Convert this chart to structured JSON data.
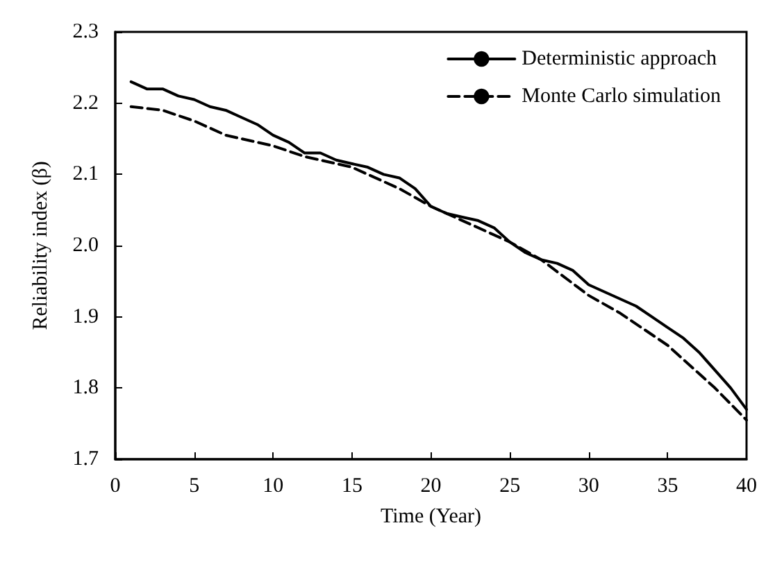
{
  "chart_data": {
    "type": "line",
    "xlabel": "Time (Year)",
    "ylabel": "Reliability index (β)",
    "xlim": [
      0,
      40
    ],
    "xticks": [
      0,
      5,
      10,
      15,
      20,
      25,
      30,
      35,
      40
    ],
    "ylim": [
      1.7,
      2.3
    ],
    "yticks": [
      {
        "value": 1.7,
        "label": "1.7"
      },
      {
        "value": 1.8,
        "label": "1.8"
      },
      {
        "value": 1.9,
        "label": "1.9"
      },
      {
        "value": 2.0,
        "label": "2.0"
      },
      {
        "value": 2.1,
        "label": "2.1"
      },
      {
        "value": 2.2,
        "label": "2.2"
      },
      {
        "value": 2.3,
        "label": "2.3"
      }
    ],
    "grid": false,
    "legend": "top right",
    "marker": "none",
    "series": [
      {
        "name": "Deterministic approach",
        "color": "#000000",
        "line_style": "solid",
        "x": [
          1,
          2,
          3,
          4,
          5,
          6,
          7,
          8,
          9,
          10,
          11,
          12,
          13,
          14,
          15,
          16,
          17,
          18,
          19,
          20,
          21,
          22,
          23,
          24,
          25,
          26,
          27,
          28,
          29,
          30,
          31,
          32,
          33,
          34,
          35,
          36,
          37,
          38,
          39,
          40
        ],
        "values": [
          2.23,
          2.22,
          2.22,
          2.21,
          2.205,
          2.195,
          2.19,
          2.18,
          2.17,
          2.155,
          2.145,
          2.13,
          2.13,
          2.12,
          2.115,
          2.11,
          2.1,
          2.095,
          2.08,
          2.055,
          2.045,
          2.04,
          2.035,
          2.025,
          2.005,
          1.99,
          1.98,
          1.975,
          1.965,
          1.945,
          1.935,
          1.925,
          1.915,
          1.9,
          1.885,
          1.87,
          1.85,
          1.825,
          1.8,
          1.77
        ]
      },
      {
        "name": "Monte Carlo simulation",
        "color": "#000000",
        "line_style": "dashed",
        "x": [
          1,
          3,
          5,
          7,
          10,
          12,
          15,
          17,
          18,
          20,
          22,
          25,
          27,
          30,
          32,
          35,
          37,
          38,
          40
        ],
        "values": [
          2.195,
          2.19,
          2.175,
          2.155,
          2.14,
          2.125,
          2.11,
          2.09,
          2.08,
          2.055,
          2.035,
          2.005,
          1.98,
          1.93,
          1.905,
          1.86,
          1.82,
          1.8,
          1.755
        ]
      }
    ]
  }
}
